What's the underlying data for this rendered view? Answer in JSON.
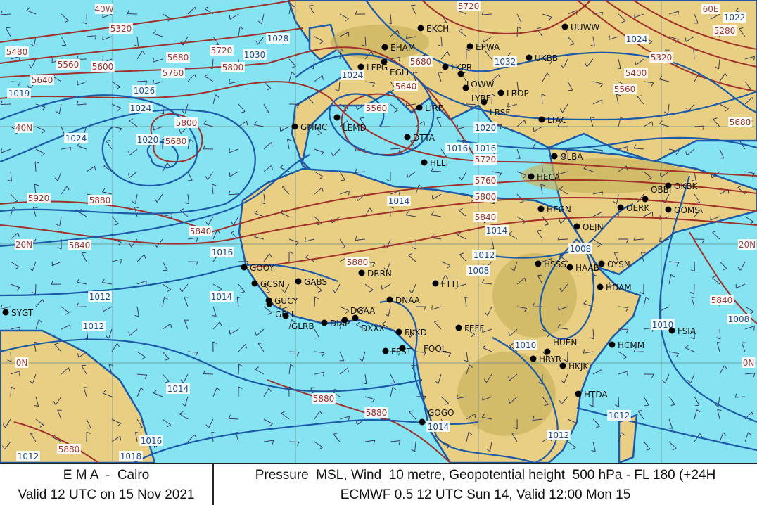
{
  "footer": {
    "agency": "E M A  -  Cairo",
    "valid": "Valid 12 UTC on 15 Nov 2021",
    "product": "Pressure  MSL, Wind  10 metre, Geopotential height  500 hPa - FL 180 (+24H",
    "run": "ECMWF 0.5 12 UTC Sun 14, Valid 12:00 Mon 15"
  },
  "map": {
    "colors": {
      "sea": "#86e3f2",
      "land": "#e8cf84",
      "highland": "#c9b35e",
      "isobar": "#1c5aa8",
      "geopotential": "#a0302a",
      "station": "#000000"
    },
    "grid_labels": [
      "40W",
      "60E",
      "40N",
      "20N",
      "0N",
      "20N",
      "0N"
    ],
    "geopotential_labels": [
      "5320",
      "5480",
      "5560",
      "5600",
      "5640",
      "5680",
      "5720",
      "5760",
      "5800",
      "5800",
      "5680",
      "5920",
      "5880",
      "5840",
      "5840",
      "5720",
      "5680",
      "5640",
      "5560",
      "5280",
      "5320",
      "5400",
      "5560",
      "5680",
      "5720",
      "5760",
      "5800",
      "5840",
      "5880",
      "5880",
      "5880",
      "5840",
      "5880"
    ],
    "isobar_labels": [
      "1028",
      "1030",
      "1024",
      "1032",
      "1026",
      "1024",
      "1020",
      "1016",
      "1014",
      "1014",
      "1012",
      "1008",
      "1016",
      "1014",
      "1012",
      "1012",
      "1014",
      "1016",
      "1018",
      "1014",
      "1012",
      "1012",
      "1010",
      "1008",
      "1008",
      "1010",
      "1022",
      "1024",
      "1019",
      "1024",
      "1020",
      "1016",
      "1012"
    ],
    "stations": [
      "EKCH",
      "EHAM",
      "EGLL",
      "LFPG",
      "LKPR",
      "EPWA",
      "UKBB",
      "UUWW",
      "LOWW",
      "LYBE",
      "LROP",
      "LBSF",
      "LIRF",
      "DTTA",
      "LEMD",
      "GMMC",
      "HLLT",
      "LTAC",
      "OLBA",
      "HECA",
      "HEGN",
      "OEJN",
      "OERK",
      "OBBI",
      "OOMS",
      "OKBK",
      "GOOY",
      "GABS",
      "DRRN",
      "DNAA",
      "FTTJ",
      "GCSN",
      "GUCY",
      "GFLL",
      "GLRB",
      "DIAP",
      "DGAA",
      "DXXX",
      "FKKD",
      "FEFF",
      "FPST",
      "FOOL",
      "HSSS",
      "HAAB",
      "OYSN",
      "HDAM",
      "HCMM",
      "HTDA",
      "HKJK",
      "HRYR",
      "HUEN",
      "FSIA",
      "SYGT",
      "GOGO"
    ]
  }
}
